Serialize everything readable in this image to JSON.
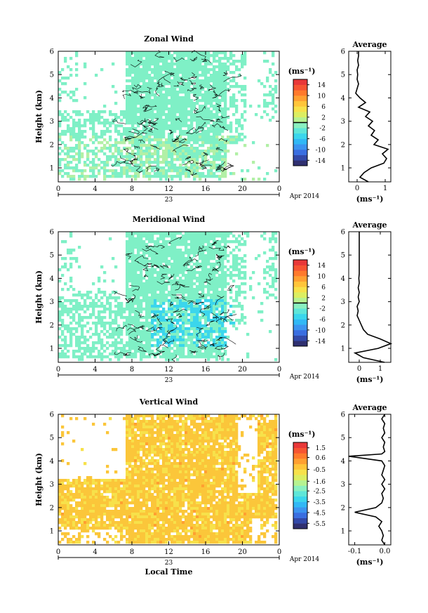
{
  "chart_data": [
    {
      "type": "heatmap",
      "title": "Zonal Wind",
      "ylabel": "Height (km)",
      "yticks": [
        "1",
        "2",
        "3",
        "4",
        "5",
        "6"
      ],
      "ylim": [
        0.4,
        6
      ],
      "xticks": [
        "0",
        "4",
        "8",
        "12",
        "16",
        "20",
        "0"
      ],
      "xlim": [
        0,
        24
      ],
      "date_day": "23",
      "date_month": "Apr 2014",
      "colorbar": {
        "unit": "(ms⁻¹)",
        "ticks": [
          "14",
          "10",
          "6",
          "2",
          "-2",
          "-6",
          "-10",
          "-14"
        ],
        "range": [
          -16,
          16
        ],
        "colors": [
          "#303070",
          "#3349a8",
          "#3a6ee0",
          "#3c94f0",
          "#31b8f5",
          "#3bd6ec",
          "#5fe6d8",
          "#8af0c0",
          "#b6f291",
          "#dcee61",
          "#f7e14a",
          "#ffc53a",
          "#ffa031",
          "#ff7a2c",
          "#f65532",
          "#e83838"
        ],
        "marker_value": 0
      },
      "field": {
        "dominant_color": "#7ff0c6",
        "secondary_color": "#b2f0a6",
        "contours": "black"
      },
      "average_profile": {
        "title": "Average",
        "unit": "(ms⁻¹)",
        "xticks": [
          "0",
          "1"
        ],
        "xlim": [
          -0.3,
          1.2
        ],
        "heights": [
          0.4,
          0.6,
          0.8,
          1.0,
          1.2,
          1.4,
          1.6,
          1.8,
          2.0,
          2.2,
          2.4,
          2.6,
          2.8,
          3.0,
          3.2,
          3.4,
          3.6,
          3.8,
          4.0,
          4.2,
          4.4,
          4.6,
          4.8,
          5.0,
          5.2,
          5.4,
          5.6,
          5.8,
          6.0
        ],
        "values": [
          0.4,
          0.1,
          0.25,
          0.5,
          0.95,
          1.05,
          0.9,
          1.1,
          0.6,
          0.75,
          0.5,
          0.62,
          0.4,
          0.55,
          0.3,
          0.45,
          0.05,
          0.3,
          0.1,
          -0.05,
          0.0,
          0.05,
          0.0,
          0.02,
          0.0,
          0.05,
          0.02,
          0.05,
          0.05
        ]
      }
    },
    {
      "type": "heatmap",
      "title": "Meridional Wind",
      "ylabel": "Height (km)",
      "yticks": [
        "1",
        "2",
        "3",
        "4",
        "5",
        "6"
      ],
      "ylim": [
        0.4,
        6
      ],
      "xticks": [
        "0",
        "4",
        "8",
        "12",
        "16",
        "20",
        "0"
      ],
      "xlim": [
        0,
        24
      ],
      "date_day": "23",
      "date_month": "Apr 2014",
      "colorbar": {
        "unit": "(ms⁻¹)",
        "ticks": [
          "14",
          "10",
          "6",
          "2",
          "-2",
          "-6",
          "-10",
          "-14"
        ],
        "range": [
          -16,
          16
        ],
        "colors": [
          "#303070",
          "#3349a8",
          "#3a6ee0",
          "#3c94f0",
          "#31b8f5",
          "#3bd6ec",
          "#5fe6d8",
          "#8af0c0",
          "#b6f291",
          "#dcee61",
          "#f7e14a",
          "#ffc53a",
          "#ffa031",
          "#ff7a2c",
          "#f65532",
          "#e83838"
        ],
        "marker_value": 0
      },
      "field": {
        "dominant_color": "#7ff0c6",
        "secondary_color": "#3bd6ec",
        "contours": "black"
      },
      "average_profile": {
        "title": "Average",
        "unit": "(ms⁻¹)",
        "xticks": [
          "0",
          "1"
        ],
        "xlim": [
          -0.5,
          1.5
        ],
        "heights": [
          0.4,
          0.6,
          0.8,
          1.0,
          1.2,
          1.4,
          1.6,
          1.8,
          2.0,
          2.2,
          2.4,
          2.6,
          2.8,
          3.0,
          3.2,
          3.4,
          3.6,
          3.8,
          4.0,
          4.2,
          4.4,
          4.6,
          4.8,
          5.0,
          5.2,
          5.4,
          5.6,
          5.8,
          6.0
        ],
        "values": [
          1.2,
          0.2,
          -0.2,
          0.9,
          1.5,
          1.0,
          0.4,
          0.2,
          0.1,
          0.0,
          -0.1,
          -0.05,
          -0.1,
          0.0,
          -0.05,
          0.0,
          -0.05,
          0.0,
          -0.02,
          0.0,
          0.0,
          0.0,
          0.0,
          0.0,
          0.0,
          0.0,
          0.0,
          0.0,
          0.0
        ]
      }
    },
    {
      "type": "heatmap",
      "title": "Vertical Wind",
      "ylabel": "Height (km)",
      "yticks": [
        "1",
        "2",
        "3",
        "4",
        "5",
        "6"
      ],
      "ylim": [
        0.4,
        6
      ],
      "xticks": [
        "0",
        "4",
        "8",
        "12",
        "16",
        "20",
        "0"
      ],
      "xlim": [
        0,
        24
      ],
      "date_day": "23",
      "date_month": "Apr 2014",
      "xlabel": "Local Time",
      "colorbar": {
        "unit": "(ms⁻¹)",
        "ticks": [
          "1.5",
          "0.6",
          "-0.5",
          "-1.6",
          "-2.5",
          "-3.5",
          "-4.5",
          "-5.5"
        ],
        "range": [
          -6,
          2
        ],
        "colors": [
          "#303070",
          "#3349a8",
          "#3a6ee0",
          "#3c94f0",
          "#31b8f5",
          "#3bd6ec",
          "#5fe6d8",
          "#8af0c0",
          "#b6f291",
          "#dcee61",
          "#f7e14a",
          "#ffc53a",
          "#ffa031",
          "#ff7a2c",
          "#f65532",
          "#e83838"
        ],
        "marker_value": null
      },
      "field": {
        "dominant_color": "#fbc63a",
        "secondary_color": "#f7e14a",
        "contours": "none"
      },
      "average_profile": {
        "title": "Average",
        "unit": "(ms⁻¹)",
        "xticks": [
          "-0.1",
          "0.0"
        ],
        "xlim": [
          -0.12,
          0.02
        ],
        "heights": [
          0.4,
          0.6,
          0.8,
          1.0,
          1.2,
          1.4,
          1.6,
          1.8,
          2.0,
          2.2,
          2.4,
          2.6,
          2.8,
          3.0,
          3.2,
          3.4,
          3.6,
          3.8,
          4.0,
          4.2,
          4.3,
          4.4,
          4.6,
          4.8,
          5.0,
          5.2,
          5.4,
          5.6,
          5.8,
          6.0
        ],
        "values": [
          0.0,
          -0.01,
          -0.005,
          -0.01,
          -0.02,
          -0.01,
          -0.03,
          -0.1,
          -0.03,
          -0.01,
          -0.005,
          -0.01,
          0.0,
          -0.01,
          0.0,
          -0.01,
          -0.005,
          0.0,
          -0.01,
          -0.12,
          -0.01,
          0.0,
          -0.005,
          0.0,
          -0.01,
          0.0,
          -0.005,
          0.0,
          -0.01,
          0.0
        ]
      }
    }
  ]
}
